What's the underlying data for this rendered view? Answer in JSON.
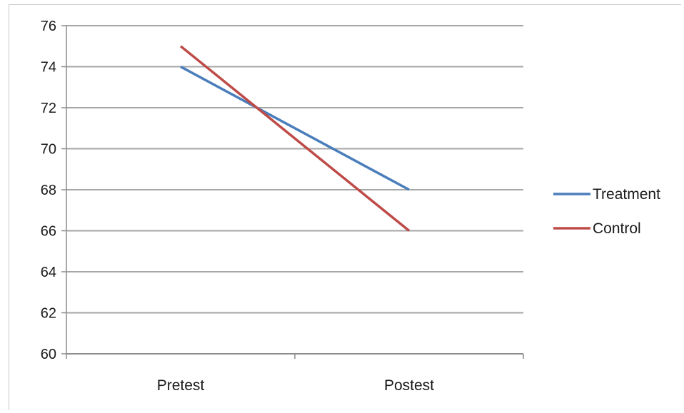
{
  "chart_data": {
    "type": "line",
    "categories": [
      "Pretest",
      "Postest"
    ],
    "series": [
      {
        "name": "Treatment",
        "values": [
          74,
          68
        ],
        "color": "#4a7ebb"
      },
      {
        "name": "Control",
        "values": [
          75,
          66
        ],
        "color": "#be4b48"
      }
    ],
    "ylim": [
      60,
      76
    ],
    "yticks": [
      60,
      62,
      64,
      66,
      68,
      70,
      72,
      74,
      76
    ],
    "grid": true,
    "legend_position": "right",
    "title": "",
    "xlabel": "",
    "ylabel": ""
  },
  "colors": {
    "grid": "#a6a6a6",
    "axis": "#8c8c8c"
  }
}
